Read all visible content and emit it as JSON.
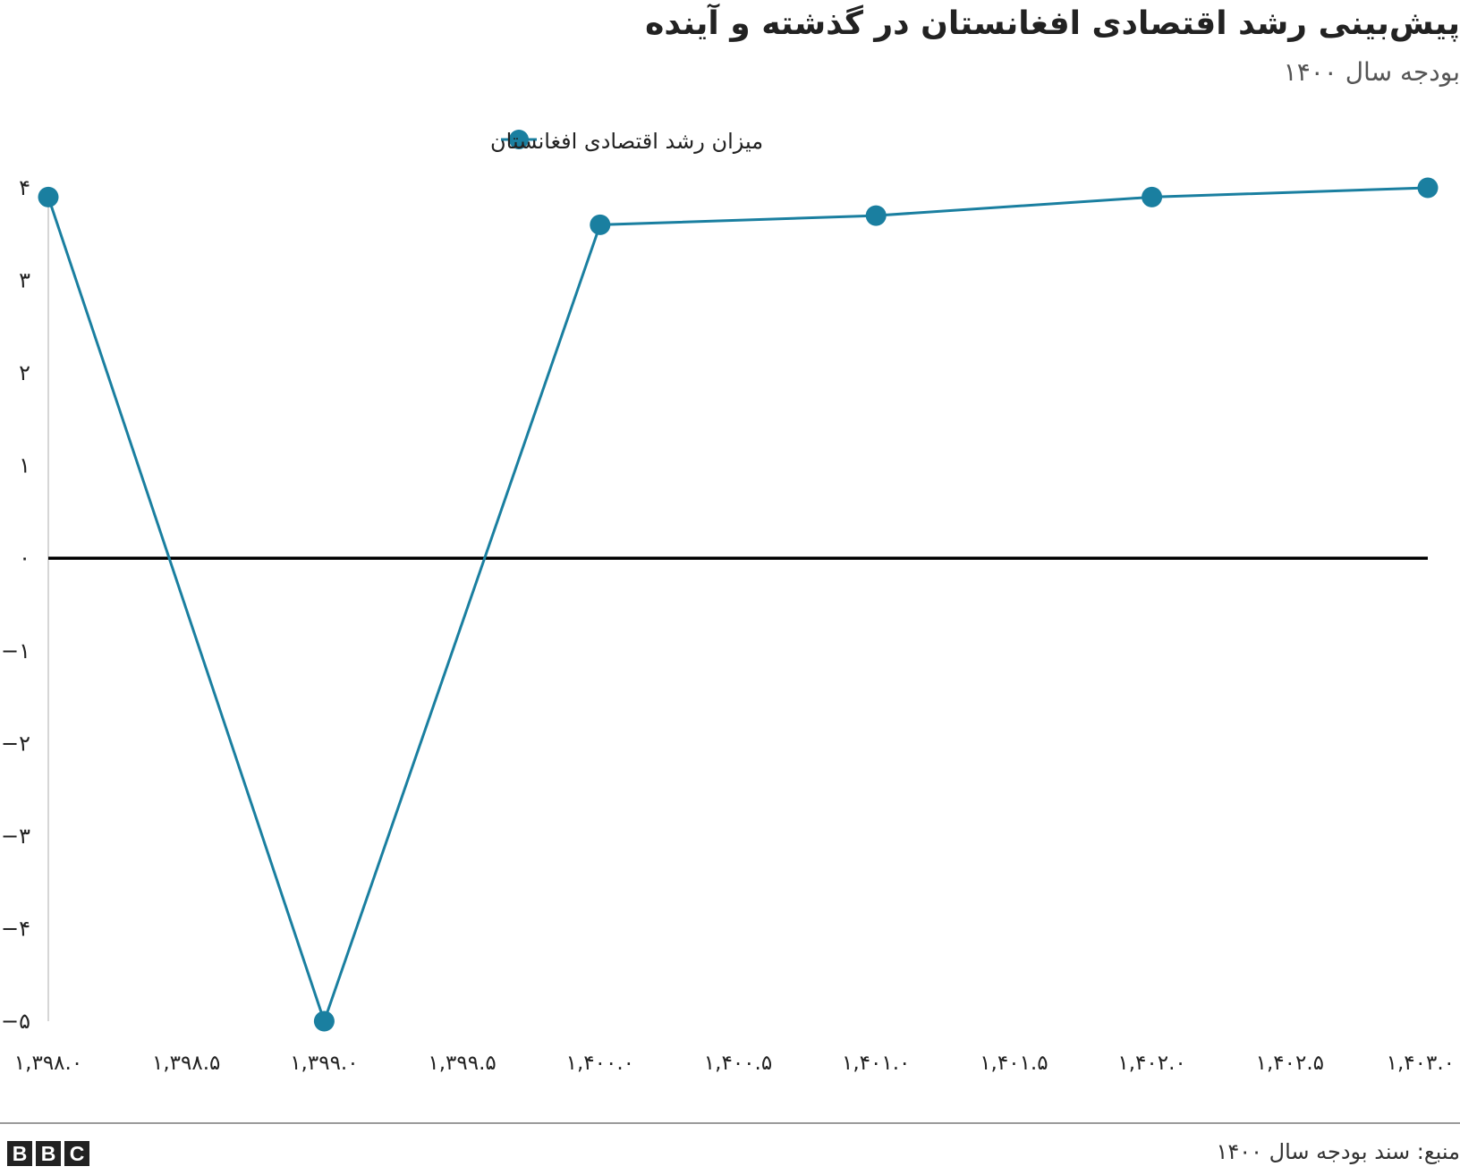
{
  "title": "پیش‌بینی رشد اقتصادی افغانستان در گذشته و آینده",
  "subtitle": "بودجه سال ۱۴۰۰",
  "source": "منبع: سند بودجه سال ۱۴۰۰",
  "logo_letters": [
    "B",
    "B",
    "C"
  ],
  "colors": {
    "series": "#1a7fa0",
    "zero_line": "#000000",
    "axis": "#c8c8c8",
    "text": "#222222"
  },
  "chart_data": {
    "type": "line",
    "legend_position": "top-left",
    "grid": false,
    "xlim": [
      1398,
      1403
    ],
    "ylim": [
      -5,
      4
    ],
    "x_ticks": [
      1398.0,
      1398.5,
      1399.0,
      1399.5,
      1400.0,
      1400.5,
      1401.0,
      1401.5,
      1402.0,
      1402.5,
      1403.0
    ],
    "x_tick_labels": [
      "۱,۳۹۸.۰",
      "۱,۳۹۸.۵",
      "۱,۳۹۹.۰",
      "۱,۳۹۹.۵",
      "۱,۴۰۰.۰",
      "۱,۴۰۰.۵",
      "۱,۴۰۱.۰",
      "۱,۴۰۱.۵",
      "۱,۴۰۲.۰",
      "۱,۴۰۲.۵",
      "۱,۴۰۳.۰"
    ],
    "y_ticks": [
      4,
      3,
      2,
      1,
      0,
      -1,
      -2,
      -3,
      -4,
      -5
    ],
    "y_tick_labels": [
      "۴",
      "۳",
      "۲",
      "۱",
      "۰",
      "−۱",
      "−۲",
      "−۳",
      "−۴",
      "−۵"
    ],
    "series": [
      {
        "name": "میزان رشد اقتصادی افغانستان",
        "x": [
          1398,
          1399,
          1400,
          1401,
          1402,
          1403
        ],
        "values": [
          3.9,
          -5.0,
          3.6,
          3.7,
          3.9,
          4.0
        ]
      }
    ]
  }
}
